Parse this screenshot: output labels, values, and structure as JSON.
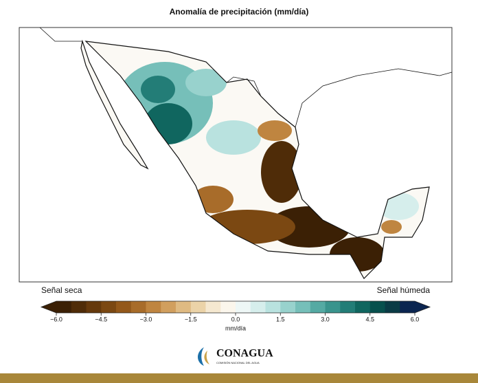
{
  "title": "Anomalía de precipitación (mm/día)",
  "labels": {
    "dry": "Señal seca",
    "wet": "Señal húmeda"
  },
  "colorbar": {
    "unit": "mm/día",
    "lim": [
      -6,
      6
    ],
    "ticks": [
      {
        "value": -6,
        "label": "−6.0"
      },
      {
        "value": -4.5,
        "label": "−4.5"
      },
      {
        "value": -3,
        "label": "−3.0"
      },
      {
        "value": -1.5,
        "label": "−1.5"
      },
      {
        "value": 0,
        "label": "0.0"
      },
      1.5,
      {
        "value": 3,
        "label": "3.0"
      },
      4.5,
      {
        "value": 6,
        "label": "6.0"
      }
    ],
    "colors": [
      "#3b2005",
      "#4f2c08",
      "#65390c",
      "#7b4812",
      "#93581a",
      "#a86c2a",
      "#bf8540",
      "#d19f5e",
      "#dfba82",
      "#ebd3a8",
      "#f5e8d0",
      "#fbf6ec",
      "#eef7f6",
      "#d6eeec",
      "#b9e2df",
      "#98d2cd",
      "#76bfb9",
      "#55aaa3",
      "#3a948d",
      "#237d77",
      "#10665f",
      "#07504d",
      "#0a3b45",
      "#0b2550"
    ]
  },
  "logo": {
    "name": "CONAGUA",
    "subtitle": "COMISIÓN NACIONAL DEL AGUA"
  }
}
